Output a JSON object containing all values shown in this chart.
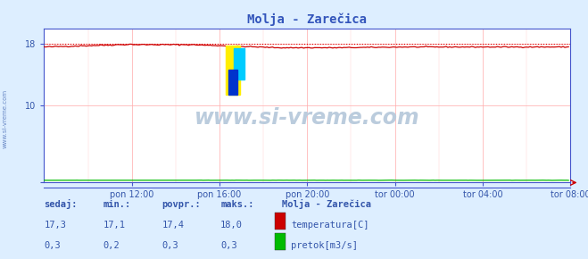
{
  "title": "Molja - Zarečica",
  "bg_color": "#ddeeff",
  "plot_bg_color": "#ffffff",
  "grid_color": "#ffaaaa",
  "xticklabels": [
    "pon 12:00",
    "pon 16:00",
    "pon 20:00",
    "tor 00:00",
    "tor 04:00",
    "tor 08:00"
  ],
  "ytick_labels": [
    "18",
    "10",
    ""
  ],
  "ytick_vals": [
    18,
    10,
    0
  ],
  "ylim": [
    0,
    20
  ],
  "xlim": [
    0,
    288
  ],
  "temp_color": "#cc0000",
  "flow_color": "#00bb00",
  "dotted_color": "#dd0000",
  "axis_color": "#4455cc",
  "watermark": "www.si-vreme.com",
  "watermark_color": "#bbccdd",
  "sidebar_text": "www.si-vreme.com",
  "sidebar_color": "#5577bb",
  "footer_color": "#3355aa",
  "sedaj_label": "sedaj:",
  "min_label": "min.:",
  "povpr_label": "povpr.:",
  "maks_label": "maks.:",
  "station_label": "Molja - Zarečica",
  "temp_label": "temperatura[C]",
  "flow_label": "pretok[m3/s]",
  "temp_sedaj": "17,3",
  "temp_min": "17,1",
  "temp_povpr": "17,4",
  "temp_maks": "18,0",
  "flow_sedaj": "0,3",
  "flow_min": "0,2",
  "flow_povpr": "0,3",
  "flow_maks": "0,3",
  "n_points": 288,
  "title_color": "#3355bb",
  "title_fontsize": 10
}
